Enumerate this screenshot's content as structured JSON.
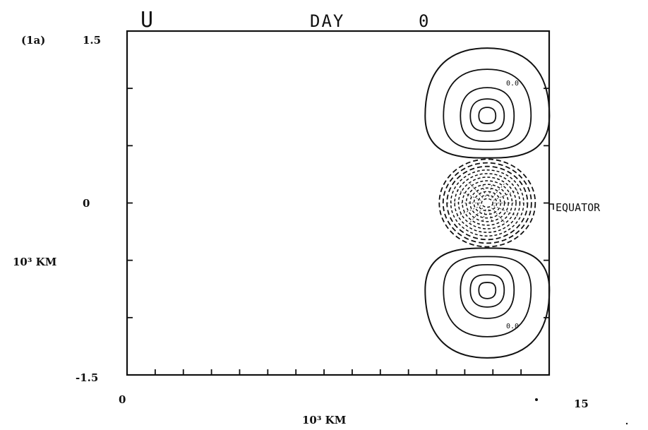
{
  "chart_data": {
    "type": "contour",
    "panel_label": "(1a)",
    "variable_label": "U",
    "title_left": "DAY",
    "title_right": "0",
    "xlabel": "10³ KM",
    "ylabel": "10³ KM",
    "x_tick_labels": [
      "0",
      "15"
    ],
    "y_tick_labels": [
      "1.5",
      "0",
      "-1.5"
    ],
    "xlim": [
      0,
      15
    ],
    "ylim": [
      -1.5,
      1.5
    ],
    "annotation": "EQUATOR",
    "contour_labels": [
      "0.0",
      "0.0"
    ],
    "grid": false,
    "features": {
      "center_x": 12.8,
      "positive_lobes": [
        {
          "y_center": 0.76,
          "contours": 5,
          "style": "solid"
        },
        {
          "y_center": -0.76,
          "contours": 5,
          "style": "solid"
        }
      ],
      "negative_core": {
        "y_center": 0.0,
        "contours": 12,
        "style": "dashed"
      }
    }
  }
}
